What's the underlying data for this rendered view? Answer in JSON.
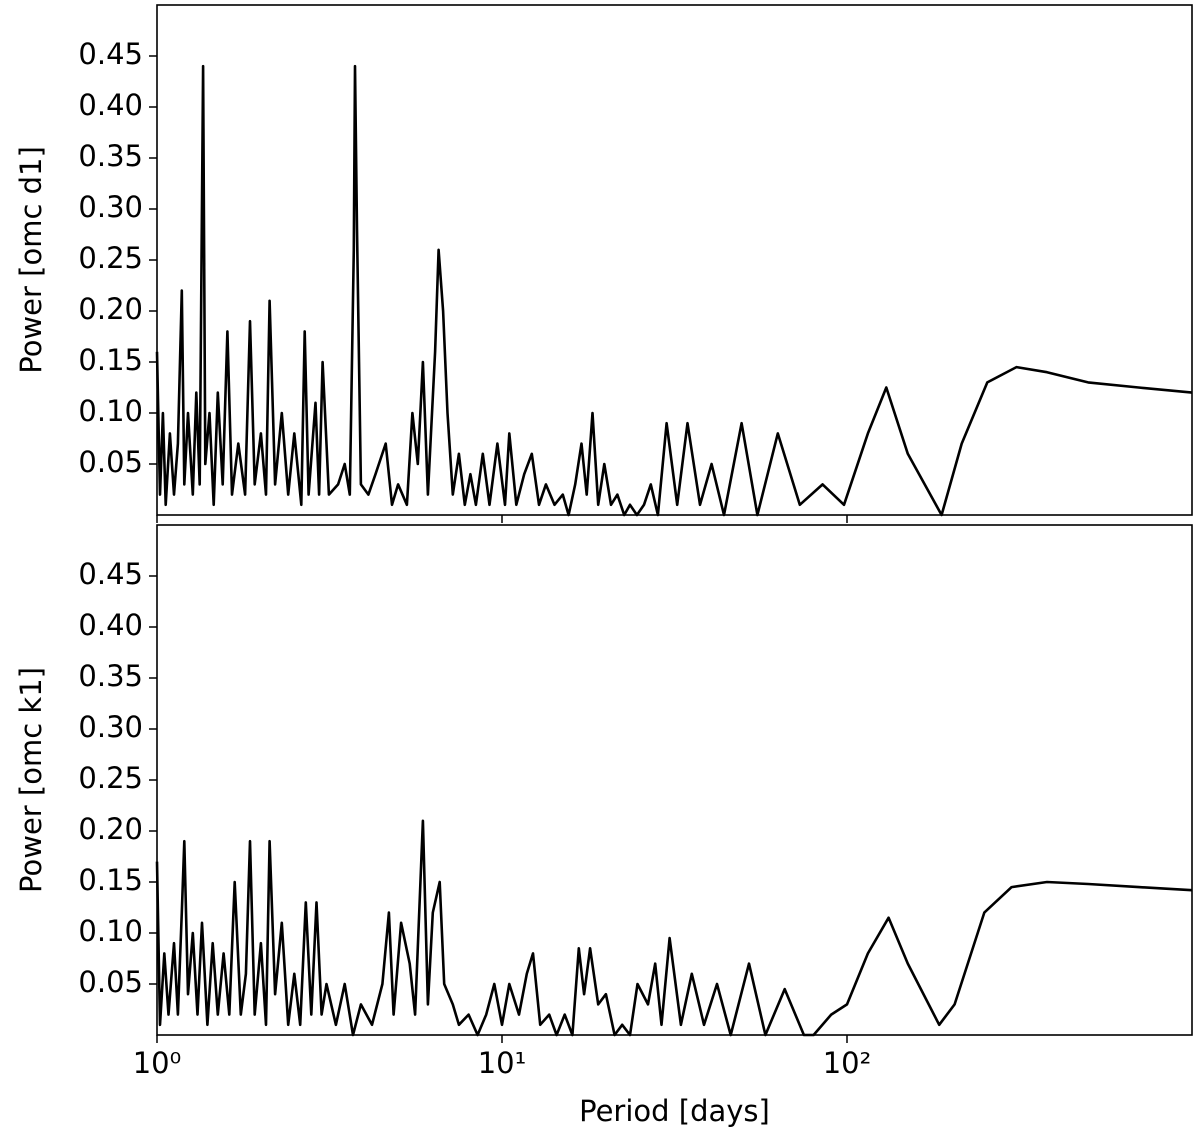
{
  "chart_data": [
    {
      "type": "line",
      "ylabel": "Power [omc d1]",
      "color": "#000000",
      "log_x": true,
      "xlim": [
        1,
        1000
      ],
      "ylim": [
        0,
        0.5
      ],
      "xticks": [
        1,
        10,
        100
      ],
      "yticks": [
        0.05,
        {
          "value": 0.1,
          "label": "0.10"
        },
        0.15,
        {
          "value": 0.2,
          "label": "0.20"
        },
        0.25,
        {
          "value": 0.3,
          "label": "0.30"
        },
        0.35,
        {
          "value": 0.4,
          "label": "0.40"
        },
        0.45
      ],
      "x": [
        1.0,
        1.02,
        1.04,
        1.06,
        1.09,
        1.12,
        1.15,
        1.18,
        1.2,
        1.23,
        1.27,
        1.3,
        1.33,
        1.36,
        1.38,
        1.42,
        1.46,
        1.5,
        1.55,
        1.6,
        1.65,
        1.72,
        1.8,
        1.86,
        1.92,
        2.0,
        2.07,
        2.12,
        2.2,
        2.3,
        2.4,
        2.5,
        2.62,
        2.68,
        2.75,
        2.88,
        2.95,
        3.02,
        3.15,
        3.35,
        3.5,
        3.62,
        3.72,
        3.75,
        3.8,
        3.9,
        4.1,
        4.3,
        4.6,
        4.8,
        5.0,
        5.3,
        5.5,
        5.7,
        5.9,
        6.1,
        6.4,
        6.55,
        6.75,
        6.95,
        7.2,
        7.5,
        7.8,
        8.1,
        8.4,
        8.8,
        9.2,
        9.7,
        10.2,
        10.5,
        11,
        11.6,
        12.2,
        12.8,
        13.4,
        14.2,
        15,
        15.6,
        16.3,
        17,
        17.6,
        18.3,
        19,
        19.8,
        20.7,
        21.6,
        22.6,
        23.5,
        24.6,
        25.8,
        27,
        28.3,
        30,
        32.2,
        34.5,
        37.5,
        40.5,
        44,
        49.5,
        55,
        63,
        73,
        85,
        98,
        115,
        130,
        150,
        188,
        215,
        255,
        310,
        380,
        500,
        700,
        1000
      ],
      "values": [
        0.16,
        0.02,
        0.1,
        0.01,
        0.08,
        0.02,
        0.07,
        0.22,
        0.03,
        0.1,
        0.02,
        0.12,
        0.03,
        0.44,
        0.05,
        0.1,
        0.01,
        0.12,
        0.03,
        0.18,
        0.02,
        0.07,
        0.02,
        0.19,
        0.03,
        0.08,
        0.02,
        0.21,
        0.03,
        0.1,
        0.02,
        0.08,
        0.01,
        0.18,
        0.02,
        0.11,
        0.02,
        0.15,
        0.02,
        0.03,
        0.05,
        0.02,
        0.26,
        0.44,
        0.28,
        0.03,
        0.02,
        0.04,
        0.07,
        0.01,
        0.03,
        0.01,
        0.1,
        0.05,
        0.15,
        0.02,
        0.16,
        0.26,
        0.2,
        0.1,
        0.02,
        0.06,
        0.01,
        0.04,
        0.01,
        0.06,
        0.01,
        0.07,
        0.01,
        0.08,
        0.01,
        0.04,
        0.06,
        0.01,
        0.03,
        0.01,
        0.02,
        0.0,
        0.03,
        0.07,
        0.02,
        0.1,
        0.01,
        0.05,
        0.01,
        0.02,
        0.0,
        0.01,
        0.0,
        0.01,
        0.03,
        0.0,
        0.09,
        0.01,
        0.09,
        0.01,
        0.05,
        0.0,
        0.09,
        0.0,
        0.08,
        0.01,
        0.03,
        0.01,
        0.08,
        0.125,
        0.06,
        0.0,
        0.07,
        0.13,
        0.145,
        0.14,
        0.13,
        0.125,
        0.12
      ]
    },
    {
      "type": "line",
      "ylabel": "Power [omc k1]",
      "xlabel": "Period [days]",
      "color": "#000000",
      "log_x": true,
      "xlim": [
        1,
        1000
      ],
      "ylim": [
        0,
        0.5
      ],
      "xticks": [
        {
          "value": 1,
          "label": "10⁰"
        },
        {
          "value": 10,
          "label": "10¹"
        },
        {
          "value": 100,
          "label": "10²"
        }
      ],
      "yticks": [
        0.05,
        {
          "value": 0.1,
          "label": "0.10"
        },
        0.15,
        {
          "value": 0.2,
          "label": "0.20"
        },
        0.25,
        {
          "value": 0.3,
          "label": "0.30"
        },
        0.35,
        {
          "value": 0.4,
          "label": "0.40"
        },
        0.45
      ],
      "x": [
        1.0,
        1.02,
        1.05,
        1.08,
        1.12,
        1.15,
        1.18,
        1.2,
        1.23,
        1.27,
        1.31,
        1.35,
        1.4,
        1.45,
        1.5,
        1.56,
        1.62,
        1.68,
        1.75,
        1.81,
        1.86,
        1.92,
        2.0,
        2.07,
        2.12,
        2.2,
        2.3,
        2.4,
        2.5,
        2.6,
        2.7,
        2.8,
        2.9,
        3.0,
        3.1,
        3.3,
        3.5,
        3.7,
        3.9,
        4.2,
        4.5,
        4.7,
        4.85,
        5.1,
        5.4,
        5.6,
        5.9,
        6.1,
        6.3,
        6.6,
        6.8,
        7.2,
        7.5,
        8,
        8.5,
        9,
        9.5,
        10,
        10.5,
        11.2,
        11.8,
        12.3,
        12.9,
        13.7,
        14.4,
        15.2,
        16.0,
        16.7,
        17.3,
        18.0,
        19.0,
        20.0,
        21.2,
        22.3,
        23.5,
        24.7,
        26.5,
        27.8,
        29,
        30.6,
        33,
        35.5,
        38.5,
        42,
        46,
        52,
        58,
        66,
        75,
        80,
        90,
        100,
        115,
        132,
        150,
        185,
        205,
        250,
        300,
        380,
        500,
        700,
        1000
      ],
      "values": [
        0.17,
        0.01,
        0.08,
        0.02,
        0.09,
        0.02,
        0.12,
        0.19,
        0.04,
        0.1,
        0.02,
        0.11,
        0.01,
        0.09,
        0.02,
        0.08,
        0.02,
        0.15,
        0.02,
        0.06,
        0.19,
        0.02,
        0.09,
        0.01,
        0.19,
        0.04,
        0.11,
        0.01,
        0.06,
        0.01,
        0.13,
        0.02,
        0.13,
        0.02,
        0.05,
        0.01,
        0.05,
        0.0,
        0.03,
        0.01,
        0.05,
        0.12,
        0.02,
        0.11,
        0.07,
        0.02,
        0.21,
        0.03,
        0.12,
        0.15,
        0.05,
        0.03,
        0.01,
        0.02,
        0.0,
        0.02,
        0.05,
        0.01,
        0.05,
        0.02,
        0.06,
        0.08,
        0.01,
        0.02,
        0.0,
        0.02,
        0.0,
        0.085,
        0.04,
        0.085,
        0.03,
        0.04,
        0.0,
        0.01,
        0.0,
        0.05,
        0.03,
        0.07,
        0.01,
        0.095,
        0.01,
        0.06,
        0.01,
        0.05,
        0.0,
        0.07,
        0.0,
        0.045,
        0.0,
        0.0,
        0.02,
        0.03,
        0.08,
        0.115,
        0.07,
        0.01,
        0.03,
        0.12,
        0.145,
        0.15,
        0.148,
        0.145,
        0.142
      ]
    }
  ]
}
